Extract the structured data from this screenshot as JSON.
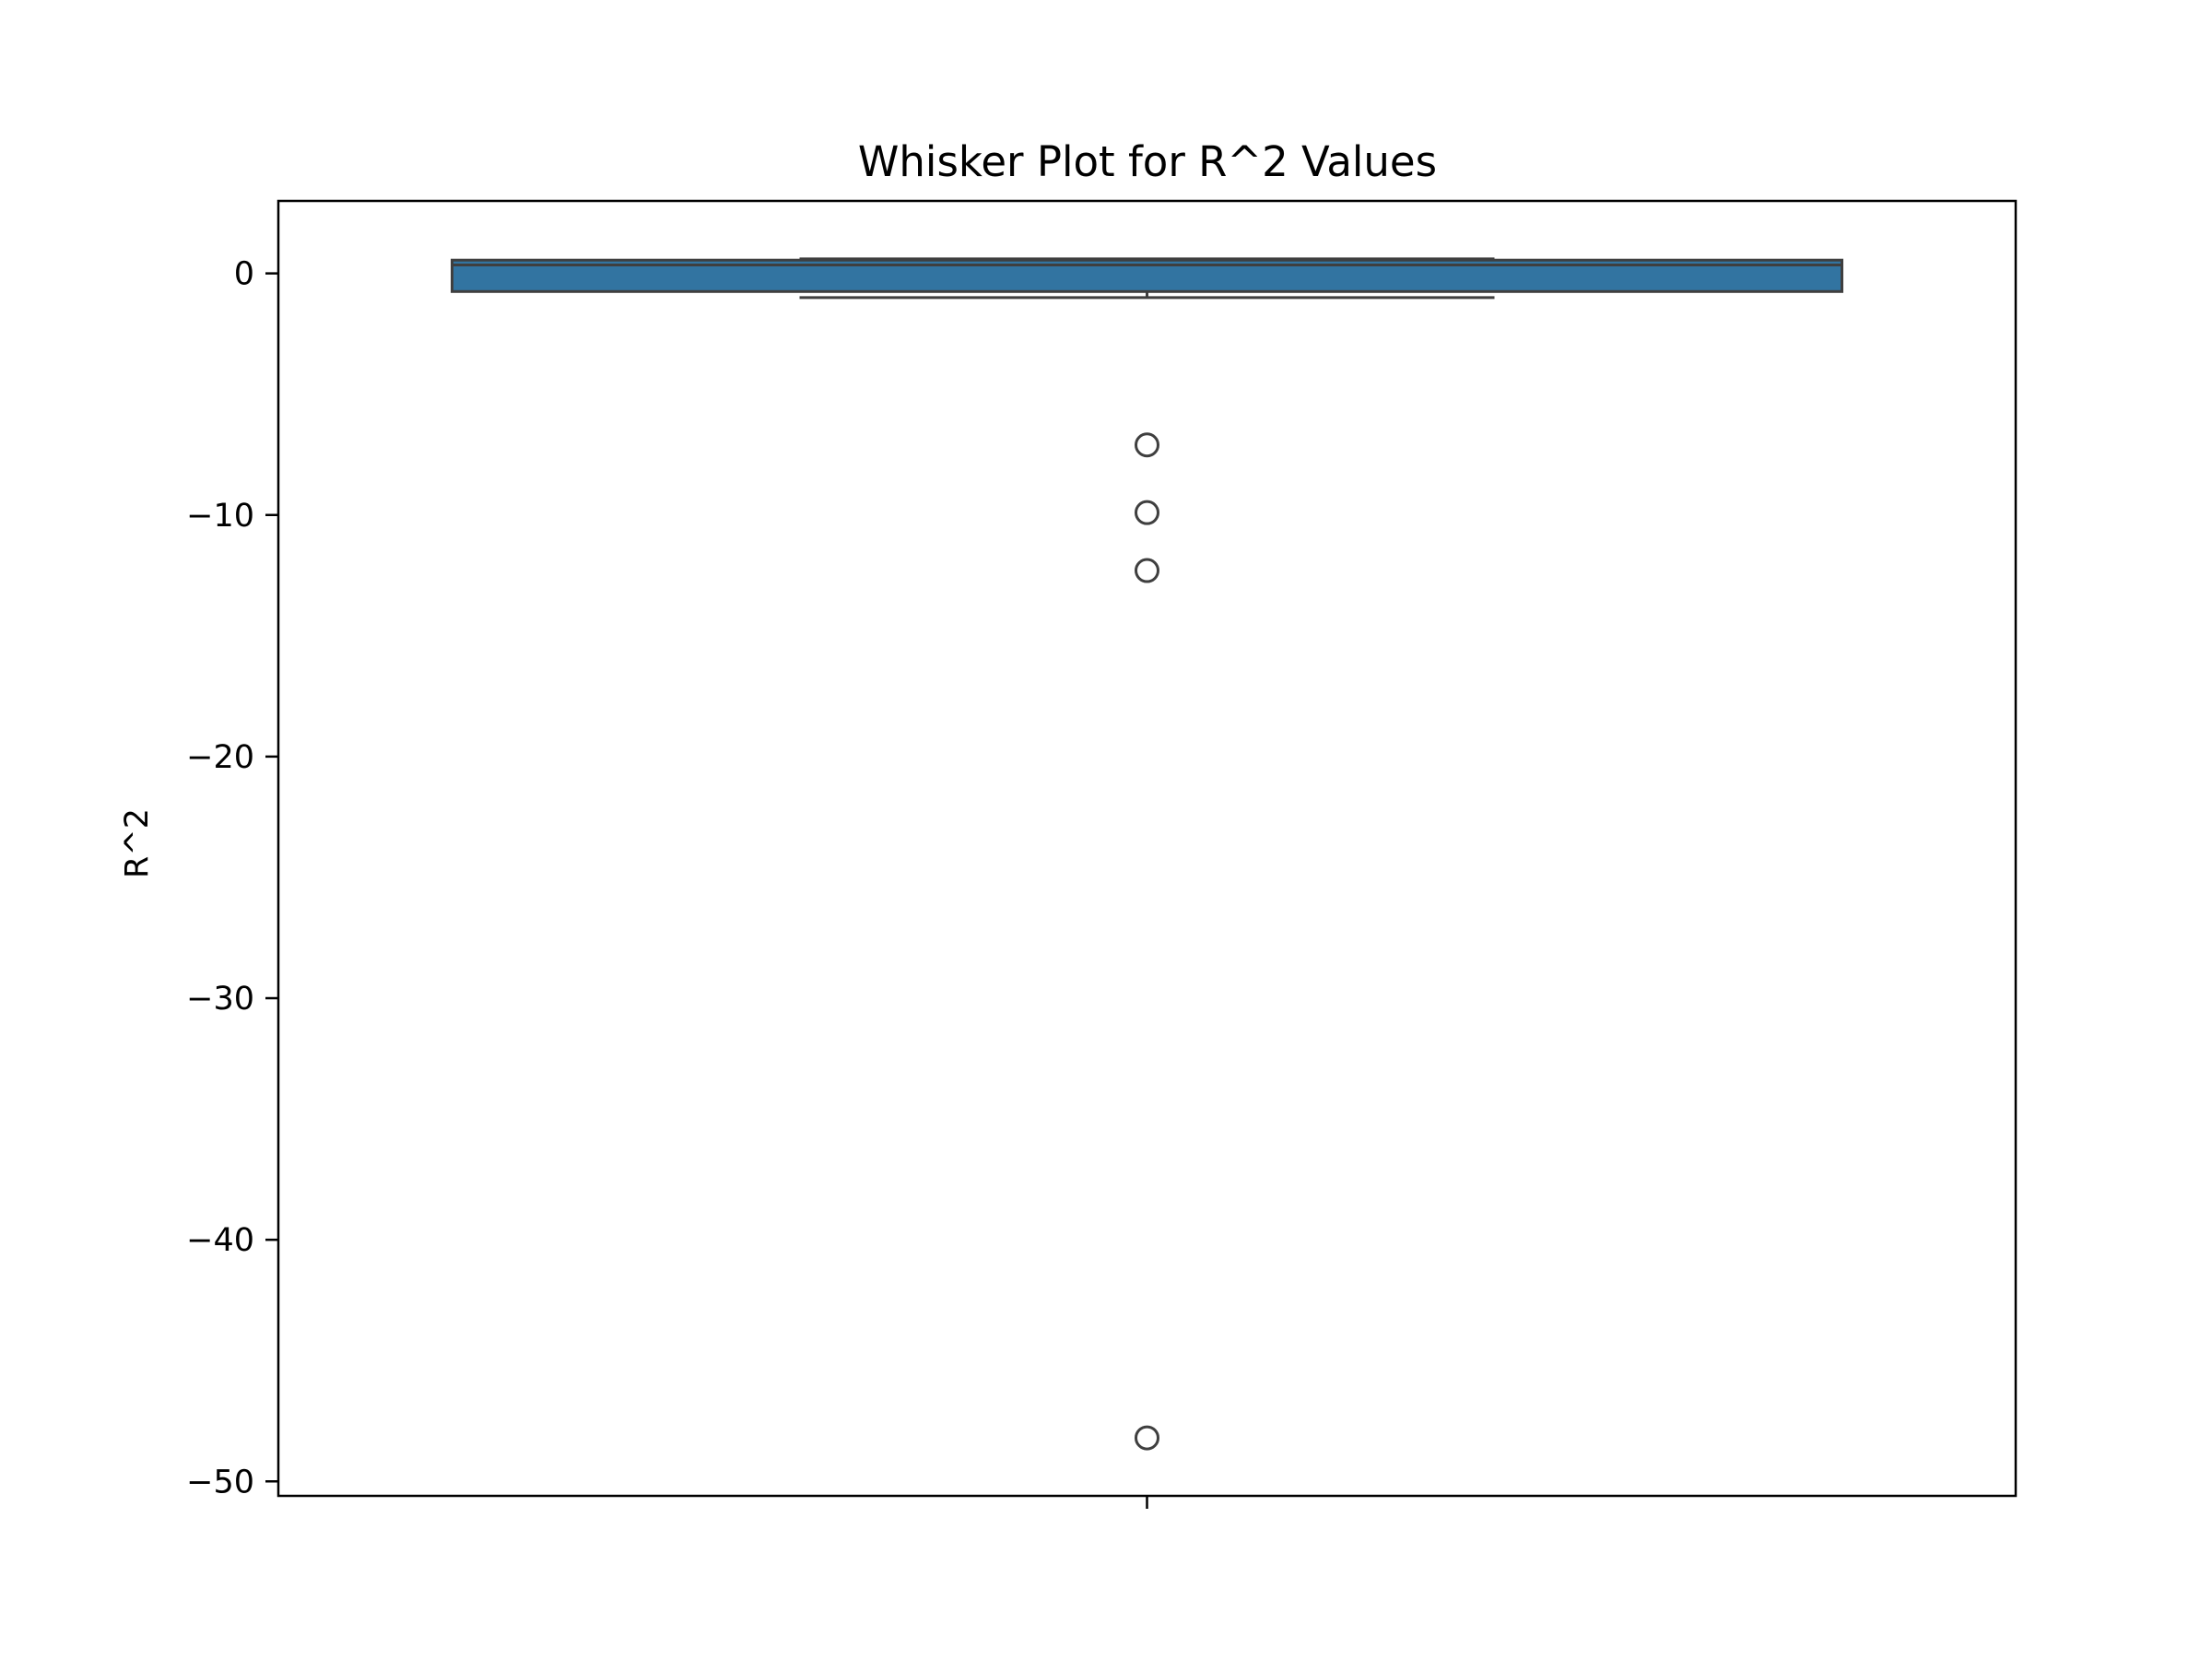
{
  "chart_data": {
    "type": "box",
    "title": "Whisker Plot for R^2 Values",
    "xlabel": "",
    "ylabel": "R^2",
    "ylim": [
      -50.6,
      3.0
    ],
    "yticks": [
      0,
      -10,
      -20,
      -30,
      -40,
      -50
    ],
    "ytick_labels": [
      "0",
      "−10",
      "−20",
      "−30",
      "−40",
      "−50"
    ],
    "grid": false,
    "box": {
      "q1": -0.75,
      "median": 0.35,
      "q3": 0.55,
      "whisker_low": -1.0,
      "whisker_high": 0.6
    },
    "outliers": [
      -7.1,
      -9.9,
      -12.3,
      -48.2
    ],
    "colors": {
      "box_fill": "#3274a1",
      "box_edge": "#3f3f3f",
      "outlier_edge": "#3f3f3f",
      "axes": "#000000"
    }
  }
}
